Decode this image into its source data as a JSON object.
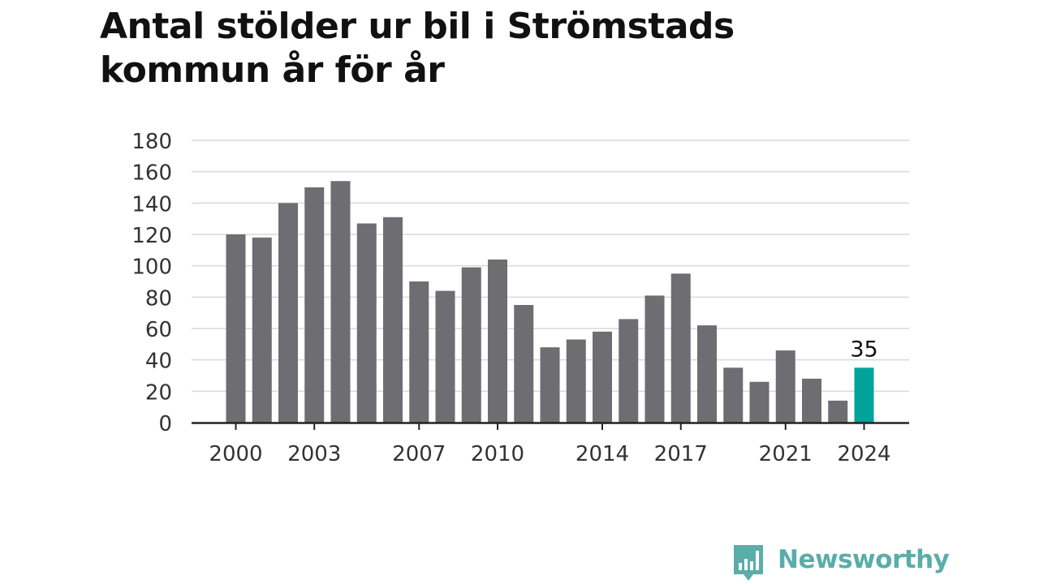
{
  "title": "Antal stölder ur bil i Strömstads kommun år för år",
  "brand": {
    "name": "Newsworthy",
    "color": "#5aada8",
    "icon": "chat-bubble-bar-chart-icon"
  },
  "colors": {
    "bar": "#6e6d72",
    "highlight": "#00a39a",
    "grid": "#d9d9d9",
    "axis": "#222222",
    "tick_text": "#333333"
  },
  "chart_data": {
    "type": "bar",
    "title": "Antal stölder ur bil i Strömstads kommun år för år",
    "xlabel": "",
    "ylabel": "",
    "categories": [
      "2000",
      "2001",
      "2002",
      "2003",
      "2004",
      "2005",
      "2006",
      "2007",
      "2008",
      "2009",
      "2010",
      "2011",
      "2012",
      "2013",
      "2014",
      "2015",
      "2016",
      "2017",
      "2018",
      "2019",
      "2020",
      "2021",
      "2022",
      "2023",
      "2024"
    ],
    "values": [
      120,
      118,
      140,
      150,
      154,
      127,
      131,
      90,
      84,
      99,
      104,
      75,
      48,
      53,
      58,
      66,
      81,
      95,
      62,
      35,
      26,
      46,
      28,
      14,
      35
    ],
    "x_tick_labels": [
      "2000",
      "2003",
      "2007",
      "2010",
      "2014",
      "2017",
      "2021",
      "2024"
    ],
    "y_ticks": [
      0,
      20,
      40,
      60,
      80,
      100,
      120,
      140,
      160,
      180
    ],
    "ylim": [
      0,
      180
    ],
    "grid": true,
    "highlight": {
      "category": "2024",
      "label": "35"
    }
  }
}
